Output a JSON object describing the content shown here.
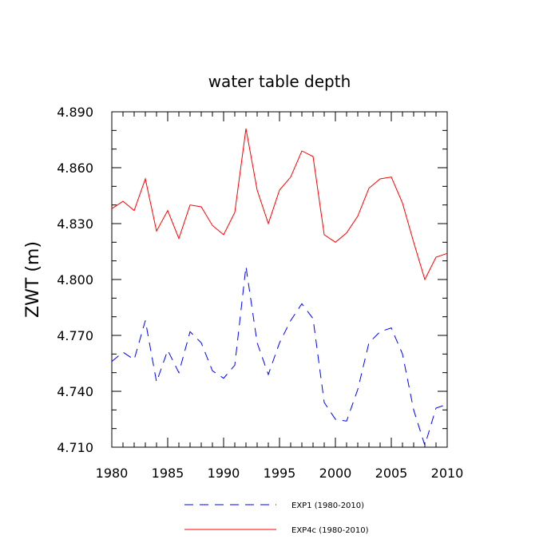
{
  "chart_data": {
    "type": "line",
    "title": "water table depth",
    "xlabel": "",
    "ylabel": "ZWT  (m)",
    "xlim": [
      1980,
      2010
    ],
    "ylim": [
      4.71,
      4.89
    ],
    "xticks": [
      1980,
      1985,
      1990,
      1995,
      2000,
      2005,
      2010
    ],
    "xtick_labels": [
      "1980",
      "1985",
      "1990",
      "1995",
      "2000",
      "2005",
      "2010"
    ],
    "yticks": [
      4.71,
      4.74,
      4.77,
      4.8,
      4.83,
      4.86,
      4.89
    ],
    "ytick_labels": [
      "4.710",
      "4.740",
      "4.770",
      "4.800",
      "4.830",
      "4.860",
      "4.890"
    ],
    "grid": false,
    "legend_position": "bottom-center",
    "x": [
      1980,
      1981,
      1982,
      1983,
      1984,
      1985,
      1986,
      1987,
      1988,
      1989,
      1990,
      1991,
      1992,
      1993,
      1994,
      1995,
      1996,
      1997,
      1998,
      1999,
      2000,
      2001,
      2002,
      2003,
      2004,
      2005,
      2006,
      2007,
      2008,
      2009,
      2010
    ],
    "series": [
      {
        "name": "EXP1 (1980-2010)",
        "color": "#0000ff",
        "style": "dashed",
        "values": [
          4.756,
          4.761,
          4.757,
          4.778,
          4.745,
          4.762,
          4.75,
          4.772,
          4.766,
          4.751,
          4.747,
          4.754,
          4.807,
          4.766,
          4.749,
          4.766,
          4.778,
          4.787,
          4.779,
          4.734,
          4.725,
          4.724,
          4.741,
          4.766,
          4.772,
          4.774,
          4.76,
          4.73,
          4.711,
          4.731,
          4.733
        ]
      },
      {
        "name": "EXP4c (1980-2010)",
        "color": "#ff0000",
        "style": "solid",
        "values": [
          4.838,
          4.842,
          4.837,
          4.854,
          4.826,
          4.837,
          4.822,
          4.84,
          4.839,
          4.829,
          4.824,
          4.836,
          4.881,
          4.848,
          4.83,
          4.848,
          4.855,
          4.869,
          4.866,
          4.824,
          4.82,
          4.825,
          4.834,
          4.849,
          4.854,
          4.855,
          4.841,
          4.82,
          4.8,
          4.812,
          4.814
        ]
      }
    ]
  }
}
